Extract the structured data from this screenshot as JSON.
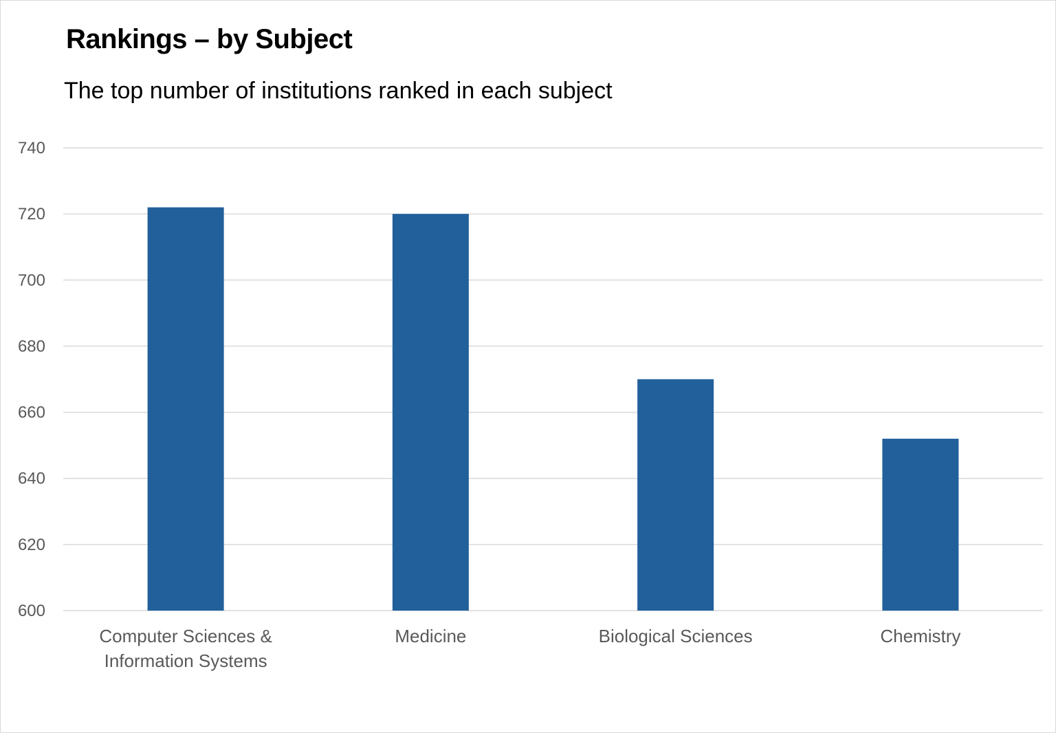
{
  "chart": {
    "title": "Rankings – by Subject",
    "subtitle": "The top number of institutions ranked in each subject"
  },
  "chart_data": {
    "type": "bar",
    "title": "Rankings – by Subject",
    "subtitle": "The top number of institutions ranked in each subject",
    "categories": [
      [
        "Computer Sciences  &",
        "Information Systems"
      ],
      [
        "Medicine"
      ],
      [
        "Biological Sciences"
      ],
      [
        "Chemistry"
      ]
    ],
    "values": [
      722,
      720,
      670,
      652
    ],
    "xlabel": "",
    "ylabel": "",
    "ylim": [
      600,
      740
    ],
    "yticks": [
      "600",
      "620",
      "640",
      "660",
      "680",
      "700",
      "720",
      "740"
    ],
    "grid": true,
    "legend": "none",
    "bar_color": "#21609b",
    "grid_color": "#d9d9d9"
  }
}
